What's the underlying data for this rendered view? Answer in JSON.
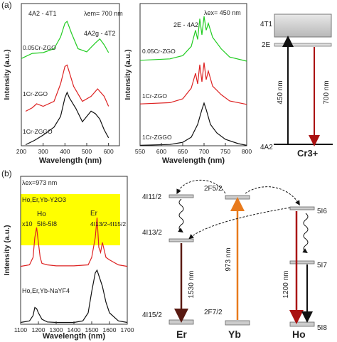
{
  "panel_a": {
    "label": "(a)",
    "left_plot": {
      "ylabel": "Intensity (a.u.)",
      "xlabel": "Wavelength (nm)",
      "xticks": [
        "200",
        "300",
        "400",
        "500",
        "600"
      ],
      "excitation": "λem= 700 nm",
      "transition1": "4A2 - 4T1",
      "transition2": "4A2g - 4T2",
      "series": [
        {
          "name": "0.05Cr-ZGO",
          "color": "#22cc22",
          "x": [
            200,
            250,
            300,
            350,
            380,
            400,
            410,
            430,
            460,
            500,
            540,
            560,
            580,
            600
          ],
          "y": [
            0.05,
            0.18,
            0.2,
            0.3,
            0.6,
            0.95,
            1.0,
            0.7,
            0.3,
            0.22,
            0.45,
            0.55,
            0.4,
            0.2
          ]
        },
        {
          "name": "1Cr-ZGO",
          "color": "#dd2222",
          "x": [
            220,
            250,
            270,
            300,
            350,
            380,
            400,
            410,
            440,
            480,
            520,
            550,
            580,
            600
          ],
          "y": [
            0.05,
            0.12,
            0.2,
            0.15,
            0.25,
            0.6,
            0.95,
            0.98,
            0.55,
            0.25,
            0.35,
            0.5,
            0.35,
            0.15
          ]
        },
        {
          "name": "1Cr-ZGGO",
          "color": "#111111",
          "x": [
            220,
            260,
            300,
            350,
            380,
            400,
            410,
            420,
            450,
            480,
            500,
            520,
            540,
            560,
            580,
            600
          ],
          "y": [
            0.02,
            0.1,
            0.2,
            0.35,
            0.55,
            0.9,
            1.0,
            0.9,
            0.7,
            0.45,
            0.55,
            0.65,
            0.6,
            0.5,
            0.3,
            0.15
          ]
        }
      ]
    },
    "middle_plot": {
      "ylabel": "Intensity (a.u.)",
      "xlabel": "Wavelength (nm)",
      "xticks": [
        "550",
        "600",
        "650",
        "700",
        "750",
        "800"
      ],
      "excitation": "λex= 450 nm",
      "transition": "2E - 4A2",
      "series": [
        {
          "name": "0.05Cr-ZGO",
          "color": "#22cc22",
          "x": [
            550,
            620,
            650,
            670,
            680,
            685,
            690,
            695,
            700,
            705,
            710,
            720,
            740,
            760,
            800
          ],
          "y": [
            0.05,
            0.08,
            0.15,
            0.35,
            0.7,
            0.5,
            0.95,
            0.6,
            1.0,
            0.7,
            0.85,
            0.55,
            0.3,
            0.12,
            0.03
          ]
        },
        {
          "name": "1Cr-ZGO",
          "color": "#dd2222",
          "x": [
            550,
            620,
            650,
            670,
            680,
            685,
            690,
            695,
            700,
            705,
            710,
            720,
            740,
            760,
            800
          ],
          "y": [
            0.03,
            0.06,
            0.15,
            0.4,
            0.75,
            0.5,
            0.95,
            0.55,
            1.0,
            0.6,
            0.8,
            0.45,
            0.25,
            0.1,
            0.02
          ]
        },
        {
          "name": "1Cr-ZGGO",
          "color": "#111111",
          "x": [
            550,
            620,
            650,
            670,
            685,
            695,
            700,
            705,
            715,
            730,
            750,
            780,
            800
          ],
          "y": [
            0.01,
            0.03,
            0.08,
            0.2,
            0.5,
            0.85,
            1.0,
            0.85,
            0.5,
            0.3,
            0.15,
            0.05,
            0.01
          ]
        }
      ]
    },
    "level_diagram": {
      "levels": [
        "4T1",
        "2E",
        "4A2"
      ],
      "arrow_up_label": "450 nm",
      "arrow_down_label": "700 nm",
      "ion": "Cr3+"
    }
  },
  "panel_b": {
    "label": "(b)",
    "plot": {
      "ylabel": "Intensity (a.u.)",
      "xlabel": "Wavelength (nm)",
      "xticks": [
        "1100",
        "1200",
        "1300",
        "1400",
        "1500",
        "1600",
        "1700"
      ],
      "excitation": "λex=973 nm",
      "top_sample": "Ho,Er,Yb-Y2O3",
      "bottom_sample": "Ho,Er,Yb-NaYF4",
      "inset_scale": "x10",
      "ho_label": "Ho",
      "ho_transition": "5I6-5I8",
      "er_label": "Er",
      "er_transition": "4I13/2-4I15/2",
      "series": [
        {
          "name": "Ho,Er,Yb-Y2O3",
          "color": "#dd2222",
          "x": [
            1100,
            1150,
            1170,
            1180,
            1190,
            1200,
            1210,
            1220,
            1250,
            1300,
            1400,
            1480,
            1500,
            1520,
            1530,
            1540,
            1550,
            1560,
            1580,
            1600,
            1650,
            1700
          ],
          "y": [
            0.02,
            0.05,
            0.2,
            0.6,
            0.8,
            0.5,
            0.2,
            0.08,
            0.05,
            0.03,
            0.03,
            0.05,
            0.2,
            0.6,
            1.0,
            0.4,
            0.3,
            0.5,
            0.2,
            0.15,
            0.05,
            0.02
          ]
        },
        {
          "name": "Ho,Er,Yb-NaYF4",
          "color": "#111111",
          "x": [
            1100,
            1150,
            1170,
            1180,
            1190,
            1200,
            1220,
            1250,
            1300,
            1400,
            1450,
            1480,
            1500,
            1520,
            1530,
            1540,
            1560,
            1580,
            1600,
            1650,
            1700
          ],
          "y": [
            0.02,
            0.05,
            0.15,
            0.3,
            0.28,
            0.2,
            0.08,
            0.03,
            0.02,
            0.02,
            0.05,
            0.2,
            0.6,
            0.95,
            1.0,
            0.9,
            0.7,
            0.4,
            0.2,
            0.05,
            0.02
          ]
        }
      ]
    },
    "energy_diagram": {
      "er_levels": [
        "4I11/2",
        "4I13/2",
        "4I15/2"
      ],
      "yb_levels": [
        "2F5/2",
        "2F7/2"
      ],
      "ho_levels": [
        "5I6",
        "5I7",
        "5I8"
      ],
      "er_arrow": "1530 nm",
      "yb_arrow": "973 nm",
      "ho_arrow": "1200 nm",
      "er_ion": "Er",
      "yb_ion": "Yb",
      "ho_ion": "Ho"
    }
  }
}
